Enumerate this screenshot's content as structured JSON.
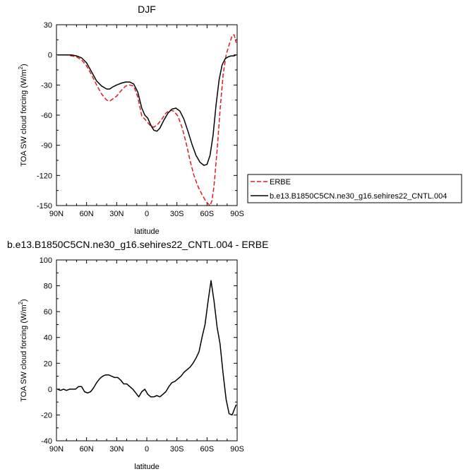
{
  "chart_data": [
    {
      "type": "line",
      "title": "DJF",
      "xlabel": "latitude",
      "ylabel": "TOA SW cloud forcing (W/m²)",
      "ylabel_main": "TOA SW cloud forcing (W/m",
      "ylabel_sup": "2",
      "ylabel_end": ")",
      "xlim": [
        90,
        -90
      ],
      "ylim": [
        -150,
        30
      ],
      "x_ticks": [
        90,
        60,
        30,
        0,
        -30,
        -60,
        -90
      ],
      "x_tick_labels": [
        "90N",
        "60N",
        "30N",
        "0",
        "30S",
        "60S",
        "90S"
      ],
      "y_ticks": [
        30,
        0,
        -30,
        -60,
        -90,
        -120,
        -150
      ],
      "y_tick_labels": [
        "30",
        "0",
        "-30",
        "-60",
        "-90",
        "-120",
        "-150"
      ],
      "legend": {
        "placement": "right",
        "entries": [
          {
            "label": "ERBE",
            "series_index": 0
          },
          {
            "label": "b.e13.B1850C5CN.ne30_g16.sehires22_CNTL.004",
            "series_index": 1
          }
        ]
      },
      "series": [
        {
          "name": "ERBE",
          "color": "#e31a1c",
          "dash": "dashed",
          "x": [
            89,
            85,
            80,
            75,
            70,
            65,
            60,
            55,
            50,
            45,
            40,
            37,
            34,
            30,
            25,
            21,
            17,
            13,
            9,
            5,
            1,
            -3,
            -7,
            -11,
            -15,
            -19,
            -23,
            -27,
            -31,
            -35,
            -39,
            -43,
            -47,
            -51,
            -55,
            -59,
            -62,
            -63,
            -65,
            -67,
            -70,
            -73,
            -76,
            -79,
            -82,
            -85,
            -87,
            -89
          ],
          "y": [
            0,
            0,
            0,
            -1,
            -2,
            -5,
            -11,
            -20,
            -30,
            -39,
            -45,
            -46,
            -44,
            -41,
            -35,
            -31,
            -30,
            -31,
            -42,
            -61,
            -65,
            -70,
            -72,
            -69,
            -64,
            -58,
            -55,
            -56,
            -61,
            -72,
            -87,
            -105,
            -120,
            -131,
            -139,
            -146,
            -149,
            -150,
            -145,
            -130,
            -95,
            -55,
            -20,
            0,
            10,
            19,
            20,
            12
          ]
        },
        {
          "name": "b.e13.B1850C5CN.ne30_g16.sehires22_CNTL.004",
          "color": "#000000",
          "dash": "solid",
          "x": [
            89,
            85,
            80,
            75,
            70,
            65,
            60,
            55,
            50,
            45,
            40,
            37,
            34,
            30,
            25,
            21,
            17,
            13,
            9,
            5,
            2,
            -1,
            -4,
            -7,
            -10,
            -13,
            -17,
            -21,
            -25,
            -29,
            -33,
            -37,
            -41,
            -45,
            -49,
            -53,
            -57,
            -60,
            -63,
            -66,
            -69,
            -72,
            -75,
            -78,
            -81,
            -84,
            -87,
            -89
          ],
          "y": [
            0,
            0,
            0,
            0,
            -1,
            -3,
            -8,
            -17,
            -26,
            -31,
            -34,
            -34,
            -32,
            -30,
            -28,
            -27,
            -27,
            -29,
            -37,
            -53,
            -60,
            -63,
            -70,
            -75,
            -76,
            -73,
            -65,
            -58,
            -54,
            -53,
            -56,
            -64,
            -76,
            -89,
            -100,
            -107,
            -110,
            -109,
            -100,
            -80,
            -50,
            -25,
            -10,
            -4,
            -2,
            -1,
            -1,
            0
          ]
        }
      ]
    },
    {
      "type": "line",
      "title": "b.e13.B1850C5CN.ne30_g16.sehires22_CNTL.004 - ERBE",
      "xlabel": "latitude",
      "ylabel": "TOA SW cloud forcing (W/m²)",
      "ylabel_main": "TOA SW cloud forcing (W/m",
      "ylabel_sup": "2",
      "ylabel_end": ")",
      "xlim": [
        90,
        -90
      ],
      "ylim": [
        -40,
        100
      ],
      "x_ticks": [
        90,
        60,
        30,
        0,
        -30,
        -60,
        -90
      ],
      "x_tick_labels": [
        "90N",
        "60N",
        "30N",
        "0",
        "30S",
        "60S",
        "90S"
      ],
      "y_ticks": [
        100,
        80,
        60,
        40,
        20,
        0,
        -20,
        -40
      ],
      "y_tick_labels": [
        "100",
        "80",
        "60",
        "40",
        "20",
        "0",
        "-20",
        "-40"
      ],
      "series": [
        {
          "color": "#000000",
          "dash": "solid",
          "x": [
            89,
            86,
            83,
            80,
            77,
            74,
            71,
            68,
            65,
            62,
            59,
            56,
            53,
            50,
            47,
            44,
            41,
            38,
            35,
            32,
            29,
            26,
            23,
            20,
            17,
            14,
            11,
            8,
            5,
            2,
            -1,
            -4,
            -7,
            -10,
            -13,
            -16,
            -19,
            -22,
            -25,
            -28,
            -31,
            -34,
            -37,
            -40,
            -43,
            -46,
            -49,
            -52,
            -55,
            -58,
            -61,
            -64,
            -67,
            -70,
            -73,
            -76,
            -79,
            -82,
            -85,
            -88,
            -89
          ],
          "y": [
            0,
            -1,
            0,
            -1,
            0,
            0,
            0,
            2,
            2,
            -2,
            -3,
            -2,
            1,
            5,
            8,
            10,
            11,
            11,
            10,
            9,
            9,
            7,
            4,
            4,
            2,
            0,
            -3,
            -6,
            -2,
            0,
            -4,
            -6,
            -6,
            -5,
            -6,
            -4,
            -2,
            2,
            5,
            6,
            8,
            10,
            13,
            15,
            17,
            20,
            24,
            29,
            40,
            50,
            68,
            84,
            68,
            48,
            35,
            12,
            -8,
            -19,
            -20,
            -14,
            -12
          ]
        }
      ]
    }
  ]
}
